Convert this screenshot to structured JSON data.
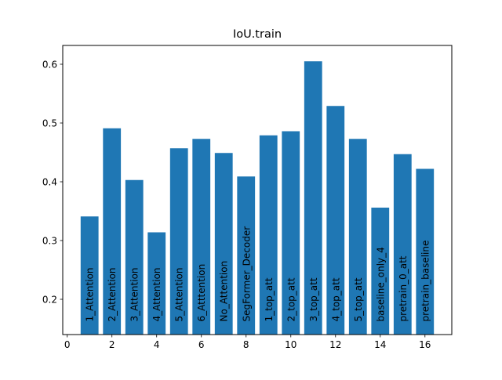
{
  "chart_data": {
    "type": "bar",
    "title": "IoU.train",
    "xlabel": "",
    "ylabel": "",
    "x": [
      1,
      2,
      3,
      4,
      5,
      6,
      7,
      8,
      9,
      10,
      11,
      12,
      13,
      14,
      15,
      16
    ],
    "values": [
      0.341,
      0.491,
      0.403,
      0.314,
      0.457,
      0.473,
      0.449,
      0.409,
      0.479,
      0.486,
      0.605,
      0.529,
      0.473,
      0.356,
      0.447,
      0.422
    ],
    "bar_labels": [
      "1_Attention",
      "2_Attention",
      "3_Attention",
      "4_Attention",
      "5_Attention",
      "6_Atttention",
      "No_Attention",
      "SegFormer_Decoder",
      "1_top_att",
      "2_top_att",
      "3_top_att",
      "4_top_att",
      "5_top_att",
      "baseline_only_4",
      "pretrain_0_att",
      "pretrain_baseline"
    ],
    "label_y": 0.162,
    "xlim": [
      -0.2,
      17.2
    ],
    "ylim": [
      0.14,
      0.632
    ],
    "xticks": [
      0,
      2,
      4,
      6,
      8,
      10,
      12,
      14,
      16
    ],
    "yticks": [
      0.2,
      0.3,
      0.4,
      0.5,
      0.6
    ],
    "bar_width_units": 0.8,
    "bar_color": "#1f77b4",
    "grid": false,
    "legend": "none"
  }
}
